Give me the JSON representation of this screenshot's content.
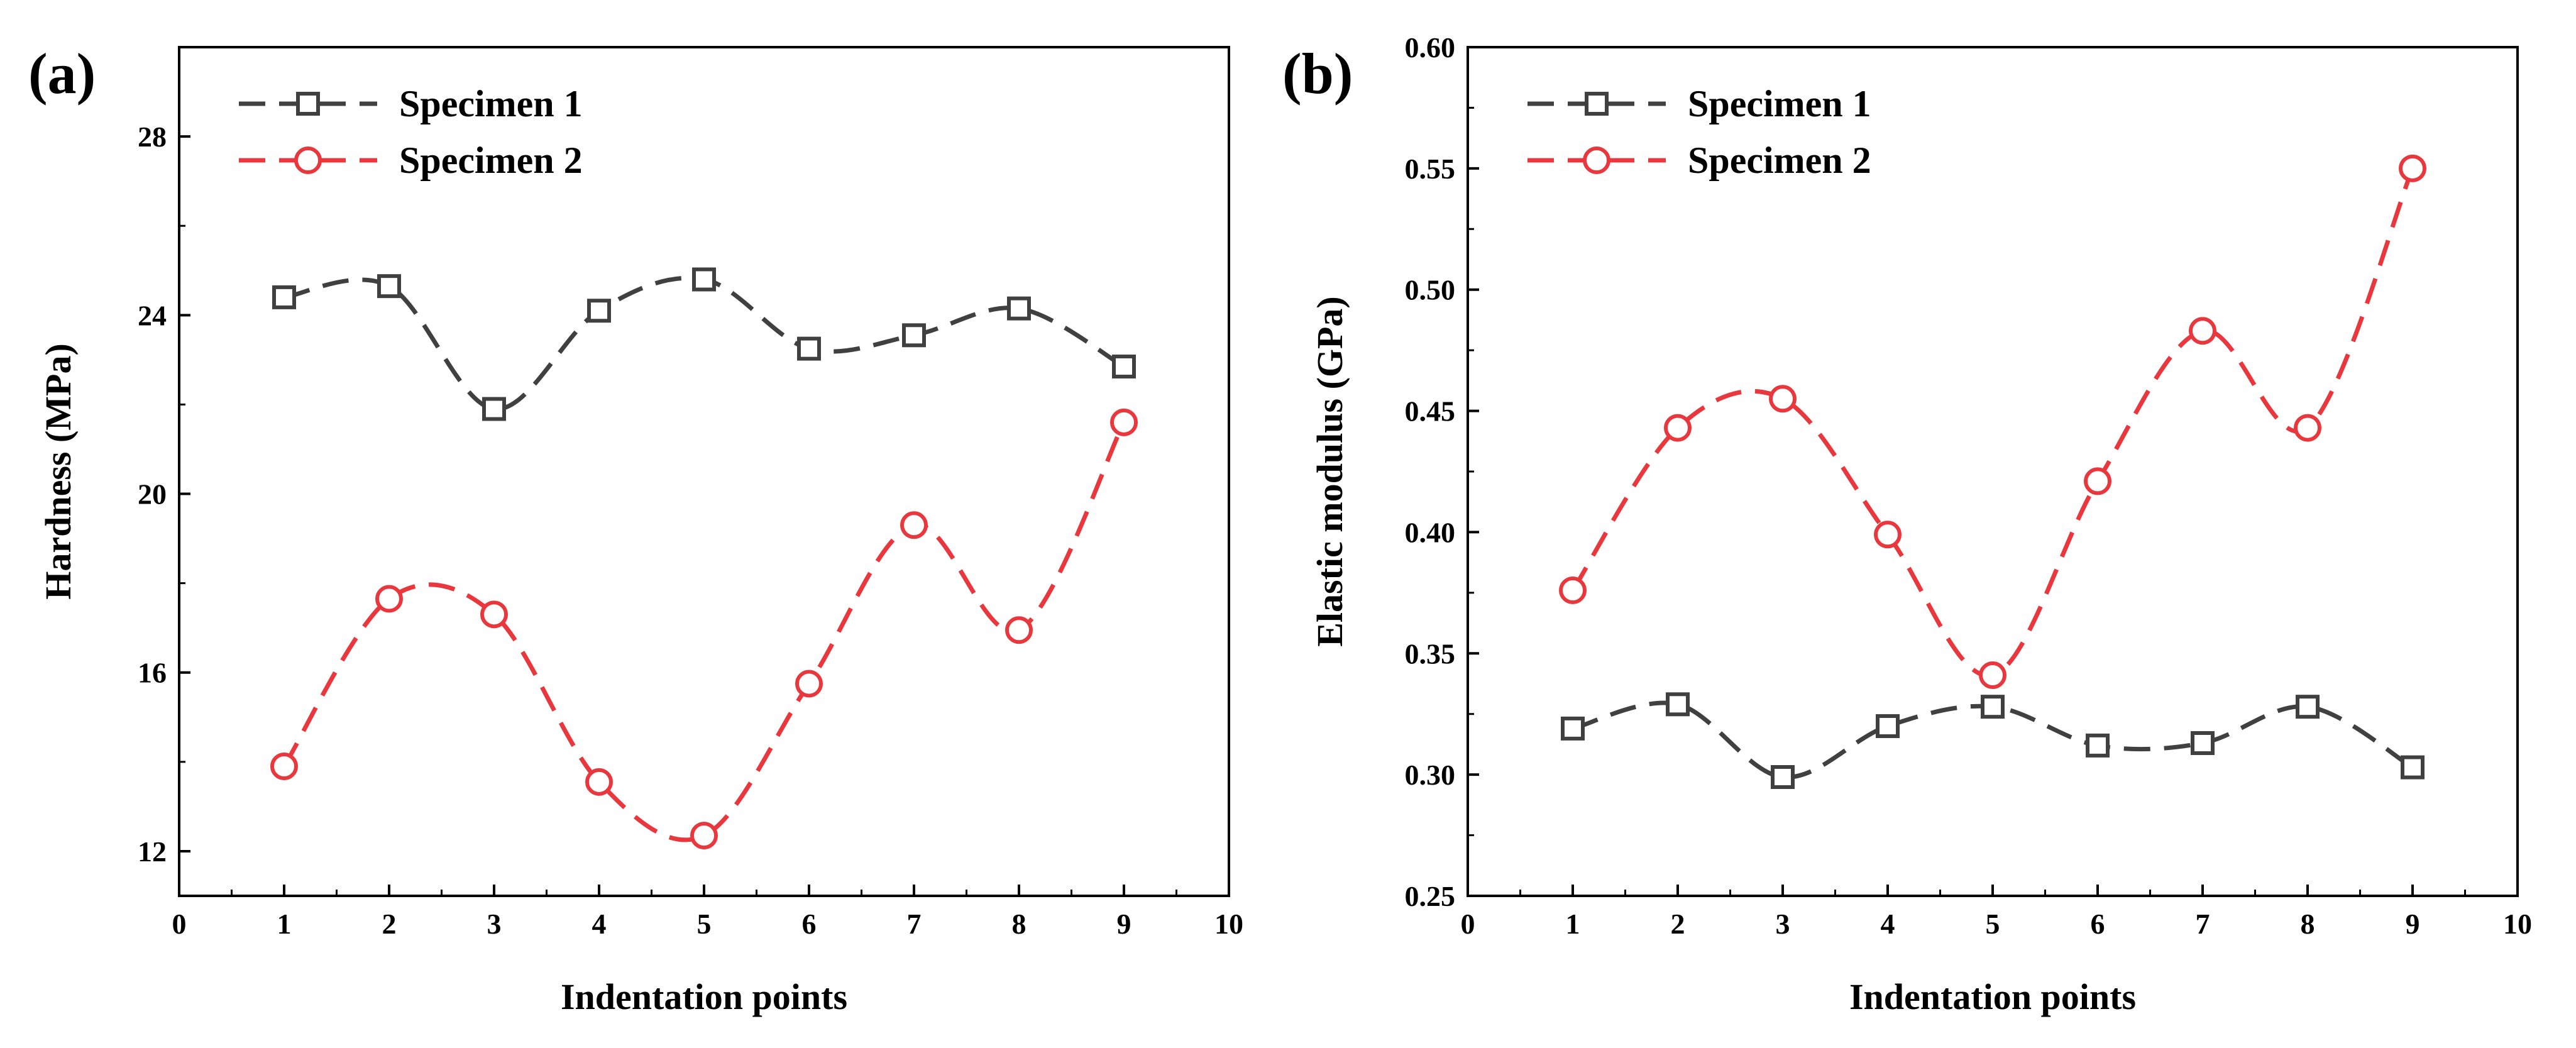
{
  "colors": {
    "specimen1": "#404040",
    "specimen2": "#e8383d",
    "axis": "#000000",
    "background": "#ffffff"
  },
  "chart_data": [
    {
      "type": "line",
      "panel_label": "(a)",
      "xlabel": "Indentation points",
      "ylabel": "Hardness (MPa)",
      "xlim": [
        0,
        10
      ],
      "ylim": [
        11,
        30
      ],
      "x_ticks": [
        0,
        1,
        2,
        3,
        4,
        5,
        6,
        7,
        8,
        9,
        10
      ],
      "y_ticks": [
        12,
        16,
        20,
        24,
        28
      ],
      "legend_position": "top-left",
      "x": [
        1,
        2,
        3,
        4,
        5,
        6,
        7,
        8,
        9
      ],
      "series": [
        {
          "name": "Specimen 1",
          "marker": "square",
          "line_style": "dashed",
          "color": "#404040",
          "values": [
            24.4,
            24.65,
            21.9,
            24.1,
            24.8,
            23.25,
            23.55,
            24.15,
            22.85
          ]
        },
        {
          "name": "Specimen 2",
          "marker": "circle",
          "line_style": "dashed",
          "color": "#e8383d",
          "values": [
            13.9,
            17.65,
            17.3,
            13.55,
            12.35,
            15.75,
            19.3,
            16.95,
            21.6
          ]
        }
      ]
    },
    {
      "type": "line",
      "panel_label": "(b)",
      "xlabel": "Indentation points",
      "ylabel": "Elastic modulus (GPa)",
      "xlim": [
        0,
        10
      ],
      "ylim": [
        0.25,
        0.6
      ],
      "x_ticks": [
        0,
        1,
        2,
        3,
        4,
        5,
        6,
        7,
        8,
        9,
        10
      ],
      "y_ticks": [
        0.25,
        0.3,
        0.35,
        0.4,
        0.45,
        0.5,
        0.55,
        0.6
      ],
      "y_tick_labels": [
        "0.25",
        "0.30",
        "0.35",
        "0.40",
        "0.45",
        "0.50",
        "0.55",
        "0.60"
      ],
      "legend_position": "top-left",
      "x": [
        1,
        2,
        3,
        4,
        5,
        6,
        7,
        8,
        9
      ],
      "series": [
        {
          "name": "Specimen 1",
          "marker": "square",
          "line_style": "dashed",
          "color": "#404040",
          "values": [
            0.319,
            0.329,
            0.299,
            0.32,
            0.328,
            0.312,
            0.313,
            0.328,
            0.303
          ]
        },
        {
          "name": "Specimen 2",
          "marker": "circle",
          "line_style": "dashed",
          "color": "#e8383d",
          "values": [
            0.376,
            0.443,
            0.455,
            0.399,
            0.341,
            0.421,
            0.483,
            0.443,
            0.55
          ]
        }
      ]
    }
  ]
}
